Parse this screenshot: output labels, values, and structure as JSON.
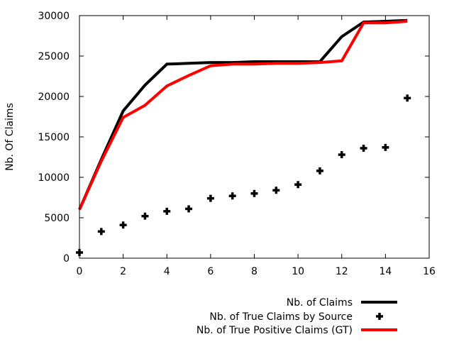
{
  "chart_data": {
    "type": "line",
    "title": "",
    "xlabel": "",
    "ylabel": "Nb. Of Claims",
    "xlim": [
      0,
      16
    ],
    "ylim": [
      0,
      30000
    ],
    "xticks": [
      "0",
      "2",
      "4",
      "6",
      "8",
      "10",
      "12",
      "14",
      "16"
    ],
    "yticks": [
      "0",
      "5000",
      "10000",
      "15000",
      "20000",
      "25000",
      "30000"
    ],
    "legend_position": "bottom-right",
    "grid": false,
    "series": [
      {
        "name": "Nb. of Claims",
        "kind": "line",
        "color": "#000000",
        "x": [
          0,
          1,
          2,
          3,
          4,
          5,
          6,
          7,
          8,
          9,
          10,
          11,
          12,
          13,
          14,
          15
        ],
        "y": [
          6000,
          12200,
          18200,
          21400,
          24000,
          24100,
          24200,
          24200,
          24300,
          24300,
          24300,
          24300,
          27400,
          29200,
          29300,
          29400
        ]
      },
      {
        "name": "Nb. of True Claims by Source",
        "kind": "scatter",
        "color": "#000000",
        "x": [
          0,
          1,
          2,
          3,
          4,
          5,
          6,
          7,
          8,
          9,
          10,
          11,
          12,
          13,
          14,
          15
        ],
        "y": [
          700,
          3300,
          4100,
          5200,
          5800,
          6100,
          7400,
          7700,
          8000,
          8400,
          9100,
          10800,
          12800,
          13600,
          13700,
          19800
        ]
      },
      {
        "name": "Nb. of True Positive Claims (GT)",
        "kind": "line",
        "color": "#ff0000",
        "x": [
          0,
          1,
          2,
          3,
          4,
          5,
          6,
          7,
          8,
          9,
          10,
          11,
          12,
          13,
          14,
          15
        ],
        "y": [
          6000,
          12000,
          17400,
          18900,
          21300,
          22600,
          23800,
          24000,
          24000,
          24100,
          24100,
          24200,
          24400,
          29100,
          29100,
          29300
        ]
      }
    ]
  }
}
